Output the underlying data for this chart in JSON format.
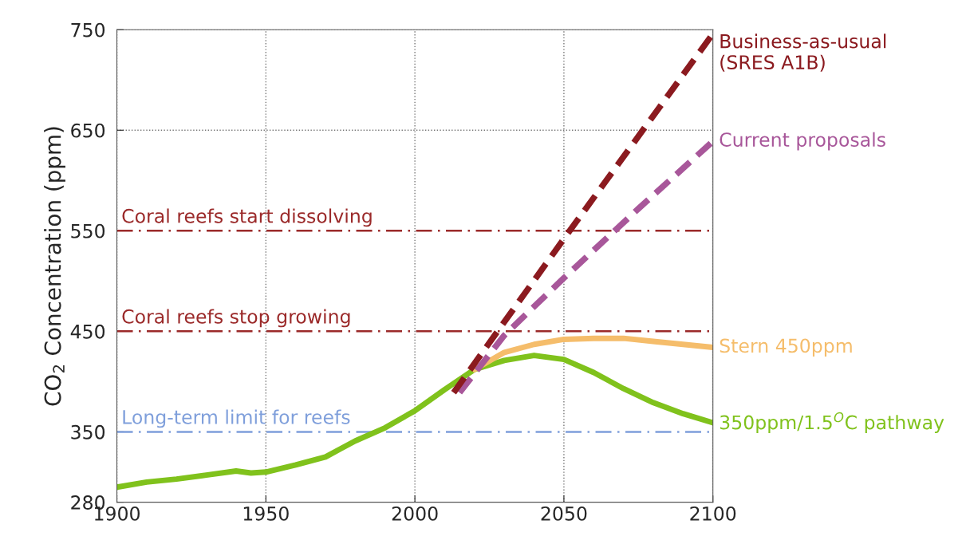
{
  "chart_data": {
    "type": "line",
    "ylabel": "CO$_{2}$ Concentration (ppm)",
    "xlim": [
      1900,
      2100
    ],
    "xticks": [
      1900,
      1950,
      2000,
      2050,
      2100
    ],
    "ylim": [
      280,
      750
    ],
    "yticks": [
      280,
      350,
      450,
      550,
      650,
      750
    ],
    "grid": true,
    "legend": false,
    "marker": "none",
    "series": [
      {
        "name": "350ppm/1.5$^{O}$C pathway",
        "color": "#80c21c",
        "line_style": "solid",
        "x": [
          1900,
          1910,
          1920,
          1930,
          1940,
          1945,
          1950,
          1960,
          1970,
          1975,
          1980,
          1990,
          2000,
          2010,
          2020,
          2030,
          2040,
          2050,
          2060,
          2070,
          2080,
          2090,
          2100
        ],
        "values": [
          295,
          300,
          303,
          307,
          311,
          309,
          310,
          317,
          325,
          333,
          341,
          354,
          371,
          392,
          412,
          421,
          426,
          422,
          409,
          393,
          379,
          368,
          359
        ]
      },
      {
        "name": "Stern 450ppm",
        "color": "#f5bd6b",
        "line_style": "solid",
        "x": [
          2020,
          2030,
          2040,
          2050,
          2060,
          2070,
          2080,
          2090,
          2100
        ],
        "values": [
          412,
          429,
          437,
          442,
          443,
          443,
          440,
          437,
          434
        ]
      },
      {
        "name": "Current proposals",
        "color": "#a8579a",
        "line_style": "dashed",
        "x": [
          2015,
          2030,
          2050,
          2075,
          2100
        ],
        "values": [
          389,
          446,
          503,
          572,
          639
        ]
      },
      {
        "name": "Business-as-usual\n(SRES A1B)",
        "color": "#8b1a1f",
        "line_style": "dashed",
        "x": [
          2013,
          2050,
          2100
        ],
        "values": [
          389,
          542,
          746
        ]
      }
    ],
    "ref_lines": [
      {
        "axis": "y",
        "value": 550,
        "label": "Coral reefs start dissolving",
        "color": "#9b2a2a",
        "line_style": "dashdot"
      },
      {
        "axis": "y",
        "value": 450,
        "label": "Coral reefs stop growing",
        "color": "#9b2a2a",
        "line_style": "dashdot"
      },
      {
        "axis": "y",
        "value": 350,
        "label": "Long-term limit for reefs",
        "color": "#7f9fdb",
        "line_style": "dashdot"
      }
    ]
  }
}
